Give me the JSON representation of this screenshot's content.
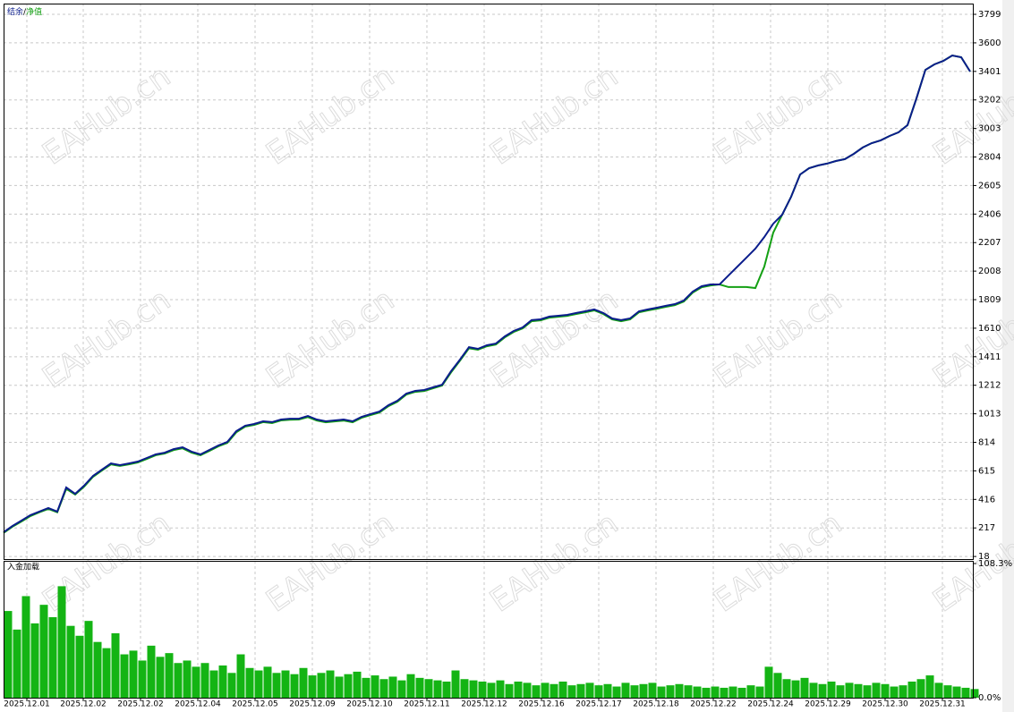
{
  "watermark": "EAHub.cn",
  "chart_data": [
    {
      "type": "line",
      "legend_separator": "/",
      "x": [
        0,
        10,
        20,
        30,
        40,
        50,
        60,
        70,
        80,
        90,
        100,
        110,
        120,
        130,
        140,
        150,
        160,
        170,
        180,
        190,
        200,
        210,
        220,
        230,
        240,
        250,
        260,
        270,
        280,
        290,
        300,
        310,
        320,
        330,
        340,
        350,
        360,
        370,
        380,
        390,
        400,
        410,
        420,
        430,
        440,
        450,
        460,
        470,
        480,
        490,
        500,
        510,
        520,
        530,
        540,
        550,
        560,
        570,
        580,
        590,
        600,
        610,
        620,
        630,
        640,
        650,
        660,
        670,
        680,
        690,
        700,
        710,
        720,
        730,
        740,
        750,
        760,
        770,
        780,
        790,
        800,
        810,
        820,
        830,
        840,
        850,
        860,
        870,
        880,
        890,
        900,
        910,
        920,
        930,
        940,
        950,
        960,
        970,
        980,
        990,
        1000,
        1010,
        1020,
        1030,
        1040,
        1050,
        1060,
        1070,
        1080
      ],
      "xlim": [
        0,
        1083
      ],
      "ylim": [
        0,
        3874
      ],
      "yticks": [
        18,
        217,
        416,
        615,
        814,
        1013,
        1212,
        1411,
        1610,
        1809,
        2008,
        2207,
        2406,
        2605,
        2804,
        3003,
        3202,
        3401,
        3600,
        3799
      ],
      "grid": true,
      "series": [
        {
          "name": "结余",
          "color": "#0b1d8c",
          "values": [
            187,
            231,
            268,
            306,
            331,
            356,
            331,
            499,
            455,
            512,
            580,
            624,
            667,
            655,
            667,
            680,
            705,
            730,
            742,
            767,
            780,
            749,
            730,
            761,
            792,
            817,
            892,
            930,
            942,
            961,
            955,
            973,
            979,
            979,
            998,
            973,
            961,
            967,
            973,
            961,
            992,
            1011,
            1029,
            1073,
            1104,
            1154,
            1173,
            1179,
            1198,
            1216,
            1310,
            1391,
            1478,
            1466,
            1491,
            1503,
            1553,
            1591,
            1616,
            1666,
            1672,
            1691,
            1697,
            1703,
            1716,
            1728,
            1741,
            1716,
            1678,
            1666,
            1678,
            1728,
            1741,
            1753,
            1766,
            1778,
            1803,
            1865,
            1903,
            1915,
            1915,
            1978,
            2040,
            2102,
            2165,
            2246,
            2339,
            2402,
            2527,
            2682,
            2726,
            2745,
            2758,
            2776,
            2789,
            2826,
            2870,
            2901,
            2920,
            2951,
            2976,
            3026,
            3213,
            3412,
            3450,
            3474,
            3512,
            3500,
            3400
          ]
        },
        {
          "name": "净值",
          "color": "#14a014",
          "values": [
            182,
            226,
            262,
            300,
            326,
            350,
            326,
            490,
            450,
            505,
            574,
            618,
            660,
            650,
            660,
            674,
            698,
            724,
            736,
            760,
            772,
            742,
            724,
            754,
            786,
            810,
            884,
            924,
            936,
            955,
            948,
            967,
            972,
            973,
            990,
            966,
            954,
            960,
            966,
            954,
            985,
            1004,
            1022,
            1066,
            1097,
            1147,
            1166,
            1172,
            1191,
            1210,
            1302,
            1384,
            1470,
            1460,
            1484,
            1496,
            1546,
            1584,
            1609,
            1659,
            1665,
            1684,
            1690,
            1696,
            1709,
            1721,
            1734,
            1709,
            1671,
            1659,
            1671,
            1721,
            1734,
            1746,
            1759,
            1771,
            1796,
            1858,
            1896,
            1908,
            1915,
            1897,
            1897,
            1897,
            1890,
            2040,
            2277,
            2402,
            2527,
            2682,
            2726,
            2745,
            2758,
            2776,
            2789,
            2826,
            2870,
            2901,
            2920,
            2951,
            2976,
            3026,
            3213,
            3412,
            3450,
            3474,
            3512,
            3500,
            3400
          ]
        }
      ]
    },
    {
      "type": "bar",
      "title": "入金加载",
      "color": "#14b414",
      "x": [
        0,
        10,
        20,
        30,
        40,
        50,
        60,
        70,
        80,
        90,
        100,
        110,
        120,
        130,
        140,
        150,
        160,
        170,
        180,
        190,
        200,
        210,
        220,
        230,
        240,
        250,
        260,
        270,
        280,
        290,
        300,
        310,
        320,
        330,
        340,
        350,
        360,
        370,
        380,
        390,
        400,
        410,
        420,
        430,
        440,
        450,
        460,
        470,
        480,
        490,
        500,
        510,
        520,
        530,
        540,
        550,
        560,
        570,
        580,
        590,
        600,
        610,
        620,
        630,
        640,
        650,
        660,
        670,
        680,
        690,
        700,
        710,
        720,
        730,
        740,
        750,
        760,
        770,
        780,
        790,
        800,
        810,
        820,
        830,
        840,
        850,
        860,
        870,
        880,
        890,
        900,
        910,
        920,
        930,
        940,
        950,
        960,
        970,
        980,
        990,
        1000,
        1010,
        1020,
        1030,
        1040,
        1050,
        1060,
        1070,
        1080
      ],
      "values": [
        70,
        55,
        82,
        60,
        75,
        65,
        90,
        58,
        50,
        62,
        45,
        40,
        52,
        35,
        38,
        30,
        42,
        33,
        36,
        28,
        30,
        25,
        28,
        22,
        26,
        20,
        35,
        24,
        22,
        25,
        20,
        22,
        19,
        24,
        18,
        20,
        22,
        17,
        19,
        21,
        16,
        18,
        15,
        17,
        14,
        19,
        16,
        15,
        14,
        13,
        22,
        15,
        14,
        13,
        12,
        14,
        11,
        13,
        12,
        10,
        12,
        11,
        13,
        10,
        11,
        12,
        10,
        11,
        9,
        12,
        10,
        11,
        12,
        9,
        10,
        11,
        10,
        9,
        8,
        9,
        8,
        9,
        8,
        10,
        9,
        25,
        20,
        15,
        14,
        16,
        12,
        11,
        13,
        10,
        12,
        11,
        10,
        12,
        11,
        9,
        10,
        13,
        15,
        18,
        12,
        10,
        9,
        8,
        7
      ],
      "xlim": [
        0,
        1083
      ],
      "ylim": [
        0,
        110.5
      ],
      "yticks": [
        {
          "value": 0,
          "label": "0.0%"
        },
        {
          "value": 108.3,
          "label": "108.3%"
        }
      ],
      "xticks": [
        {
          "value": 26,
          "label": "2025.12.01"
        },
        {
          "value": 89,
          "label": "2025.12.02"
        },
        {
          "value": 153,
          "label": "2025.12.02"
        },
        {
          "value": 217,
          "label": "2025.12.04"
        },
        {
          "value": 281,
          "label": "2025.12.05"
        },
        {
          "value": 345,
          "label": "2025.12.09"
        },
        {
          "value": 409,
          "label": "2025.12.10"
        },
        {
          "value": 473,
          "label": "2025.12.11"
        },
        {
          "value": 537,
          "label": "2025.12.12"
        },
        {
          "value": 601,
          "label": "2025.12.16"
        },
        {
          "value": 665,
          "label": "2025.12.17"
        },
        {
          "value": 729,
          "label": "2025.12.18"
        },
        {
          "value": 793,
          "label": "2025.12.22"
        },
        {
          "value": 857,
          "label": "2025.12.24"
        },
        {
          "value": 921,
          "label": "2025.12.29"
        },
        {
          "value": 985,
          "label": "2025.12.30"
        },
        {
          "value": 1049,
          "label": "2025.12.31"
        }
      ]
    }
  ]
}
